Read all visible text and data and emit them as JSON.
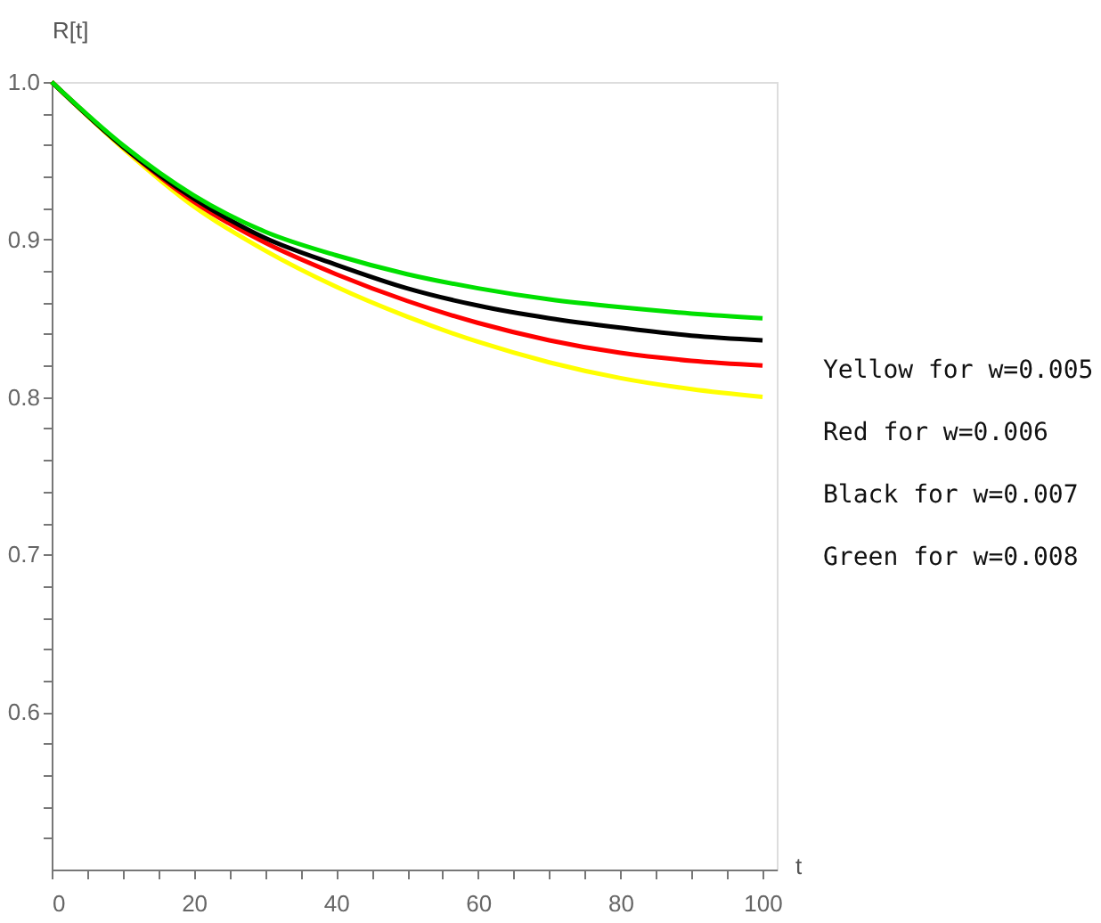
{
  "chart_data": {
    "type": "line",
    "xlabel": "t",
    "ylabel": "R[t]",
    "x": [
      0,
      10,
      20,
      30,
      40,
      50,
      60,
      70,
      80,
      90,
      100
    ],
    "series": [
      {
        "color": "#ffff00",
        "values": [
          1.0,
          0.958,
          0.921,
          0.893,
          0.87,
          0.851,
          0.835,
          0.822,
          0.812,
          0.805,
          0.8
        ]
      },
      {
        "color": "#ff0000",
        "values": [
          1.0,
          0.959,
          0.924,
          0.898,
          0.878,
          0.861,
          0.847,
          0.836,
          0.828,
          0.823,
          0.82
        ]
      },
      {
        "color": "#000000",
        "values": [
          1.0,
          0.959,
          0.926,
          0.901,
          0.884,
          0.869,
          0.858,
          0.85,
          0.844,
          0.839,
          0.836
        ]
      },
      {
        "color": "#00e000",
        "values": [
          1.0,
          0.96,
          0.928,
          0.905,
          0.89,
          0.878,
          0.869,
          0.862,
          0.857,
          0.853,
          0.85
        ]
      }
    ],
    "xlim": [
      0,
      102
    ],
    "ylim": [
      0.5,
      1.0
    ],
    "xticks": [
      0,
      {
        "value": 5,
        "label": null
      },
      {
        "value": 10,
        "label": null
      },
      {
        "value": 15,
        "label": null
      },
      20,
      {
        "value": 25,
        "label": null
      },
      {
        "value": 30,
        "label": null
      },
      {
        "value": 35,
        "label": null
      },
      40,
      {
        "value": 45,
        "label": null
      },
      {
        "value": 50,
        "label": null
      },
      {
        "value": 55,
        "label": null
      },
      60,
      {
        "value": 65,
        "label": null
      },
      {
        "value": 70,
        "label": null
      },
      {
        "value": 75,
        "label": null
      },
      80,
      {
        "value": 85,
        "label": null
      },
      {
        "value": 90,
        "label": null
      },
      {
        "value": 95,
        "label": null
      },
      100
    ],
    "yticks": [
      {
        "value": 0.52,
        "label": null
      },
      {
        "value": 0.54,
        "label": null
      },
      {
        "value": 0.56,
        "label": null
      },
      {
        "value": 0.58,
        "label": null
      },
      0.6,
      {
        "value": 0.62,
        "label": null
      },
      {
        "value": 0.64,
        "label": null
      },
      {
        "value": 0.66,
        "label": null
      },
      {
        "value": 0.68,
        "label": null
      },
      0.7,
      {
        "value": 0.72,
        "label": null
      },
      {
        "value": 0.74,
        "label": null
      },
      {
        "value": 0.76,
        "label": null
      },
      {
        "value": 0.78,
        "label": null
      },
      0.8,
      {
        "value": 0.82,
        "label": null
      },
      {
        "value": 0.84,
        "label": null
      },
      {
        "value": 0.86,
        "label": null
      },
      {
        "value": 0.88,
        "label": null
      },
      0.9,
      {
        "value": 0.92,
        "label": null
      },
      {
        "value": 0.94,
        "label": null
      },
      {
        "value": 0.96,
        "label": null
      },
      {
        "value": 0.98,
        "label": null
      },
      {
        "value": 1.0,
        "label": "1.0"
      }
    ],
    "grid": false,
    "legend": false,
    "marker": "none",
    "line_style": "solid",
    "annotations": [
      "Yellow for w=0.005",
      "Red for w=0.006",
      "Black for w=0.007",
      "Green for w=0.008"
    ]
  }
}
